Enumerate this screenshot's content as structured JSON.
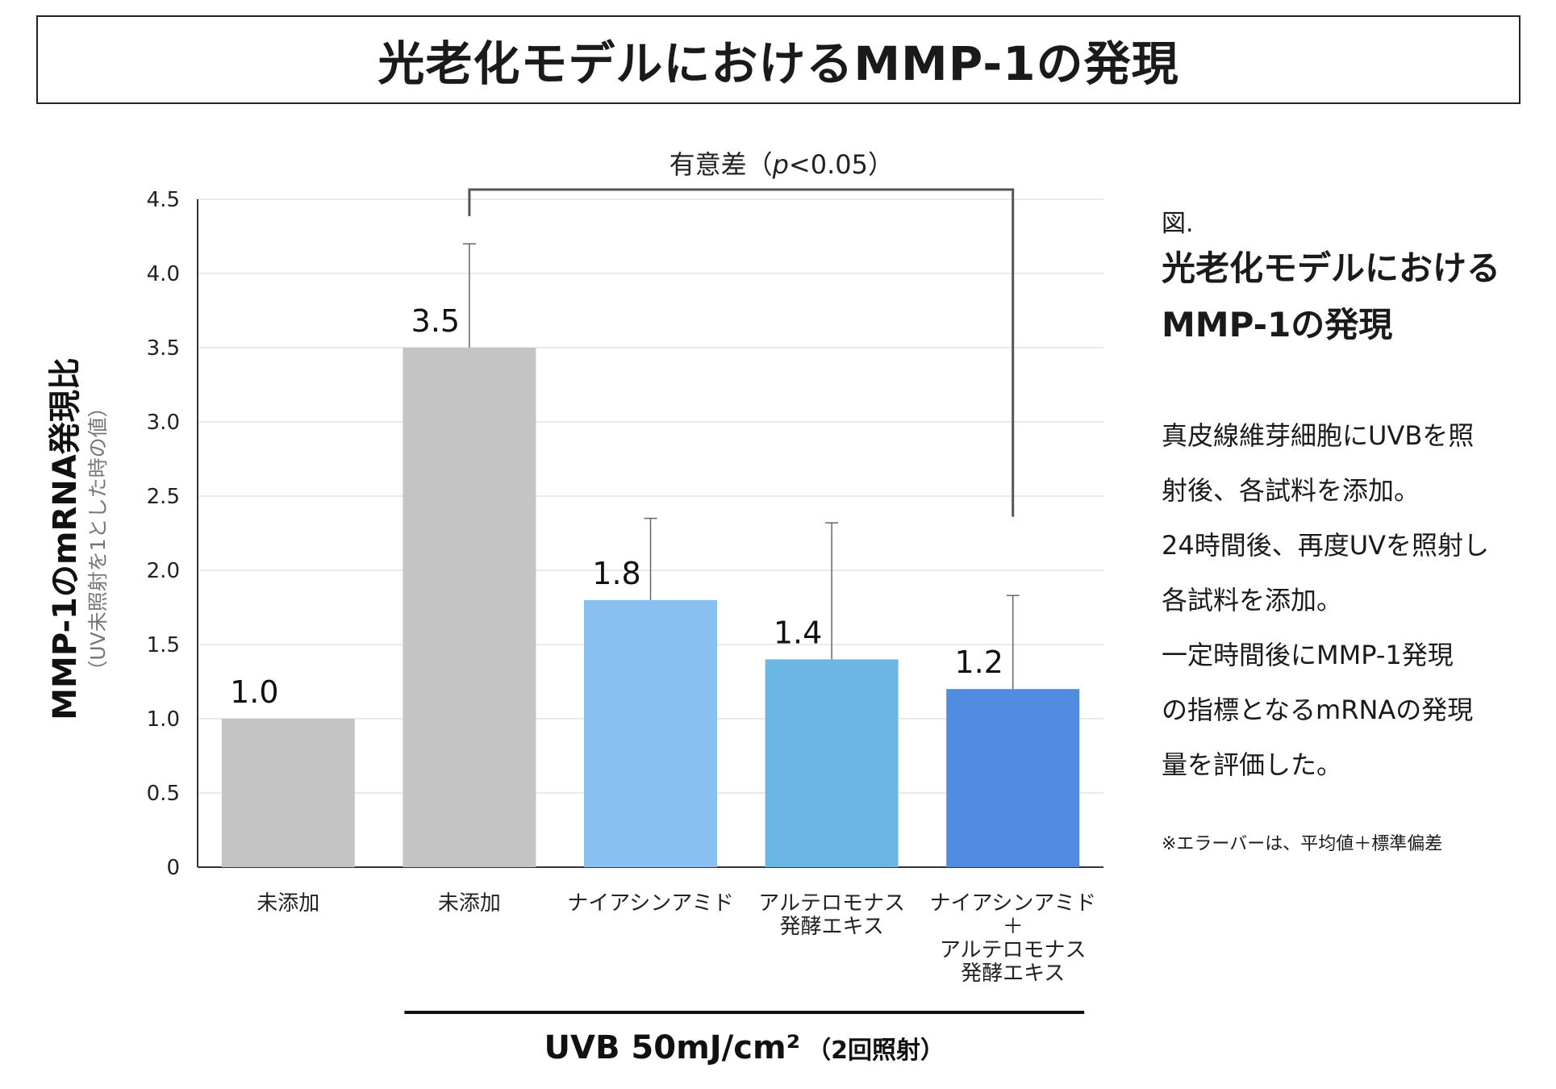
{
  "title": "光老化モデルにおけるMMP-1の発現",
  "chart_data": {
    "type": "bar",
    "categories": [
      [
        "未添加"
      ],
      [
        "未添加"
      ],
      [
        "ナイアシンアミド"
      ],
      [
        "アルテロモナス",
        "発酵エキス"
      ],
      [
        "ナイアシンアミド",
        "＋",
        "アルテロモナス",
        "発酵エキス"
      ]
    ],
    "values": [
      1.0,
      3.5,
      1.8,
      1.4,
      1.2
    ],
    "error_upper": [
      null,
      4.2,
      2.35,
      2.32,
      1.83
    ],
    "value_labels": [
      "1.0",
      "3.5",
      "1.8",
      "1.4",
      "1.2"
    ],
    "bar_colors": [
      "#c4c4c4",
      "#c4c4c4",
      "#89c0ef",
      "#6cb6e4",
      "#518ce0"
    ],
    "ylabel": "MMP-1のmRNA発現比",
    "ylabel_sub": "（UV未照射を1とした時の値）",
    "ylim": [
      0,
      4.5
    ],
    "yticks": [
      0,
      0.5,
      1.0,
      1.5,
      2.0,
      2.5,
      3.0,
      3.5,
      4.0,
      4.5
    ],
    "ytick_labels": [
      "0",
      "0.5",
      "1.0",
      "1.5",
      "2.0",
      "2.5",
      "3.0",
      "3.5",
      "4.0",
      "4.5"
    ],
    "grid": true,
    "significance": {
      "label_prefix": "有意差（",
      "label_p": "p",
      "label_suffix": "<0.05）",
      "from_index": 1,
      "to_index": 4
    },
    "group_label_main": "UVB 50mJ/cm²",
    "group_label_sub": "（2回照射）",
    "group_range": [
      1,
      4
    ]
  },
  "side_panel": {
    "fig_label": "図.",
    "title_lines": [
      "光老化モデルにおける",
      "MMP-1の発現"
    ],
    "description_lines": [
      "真皮線維芽細胞にUVBを照",
      "射後、各試料を添加。",
      "24時間後、再度UVを照射し",
      "各試料を添加。",
      "一定時間後にMMP-1発現",
      "の指標となるmRNAの発現",
      "量を評価した。"
    ],
    "note": "※エラーバーは、平均値＋標準偏差"
  }
}
